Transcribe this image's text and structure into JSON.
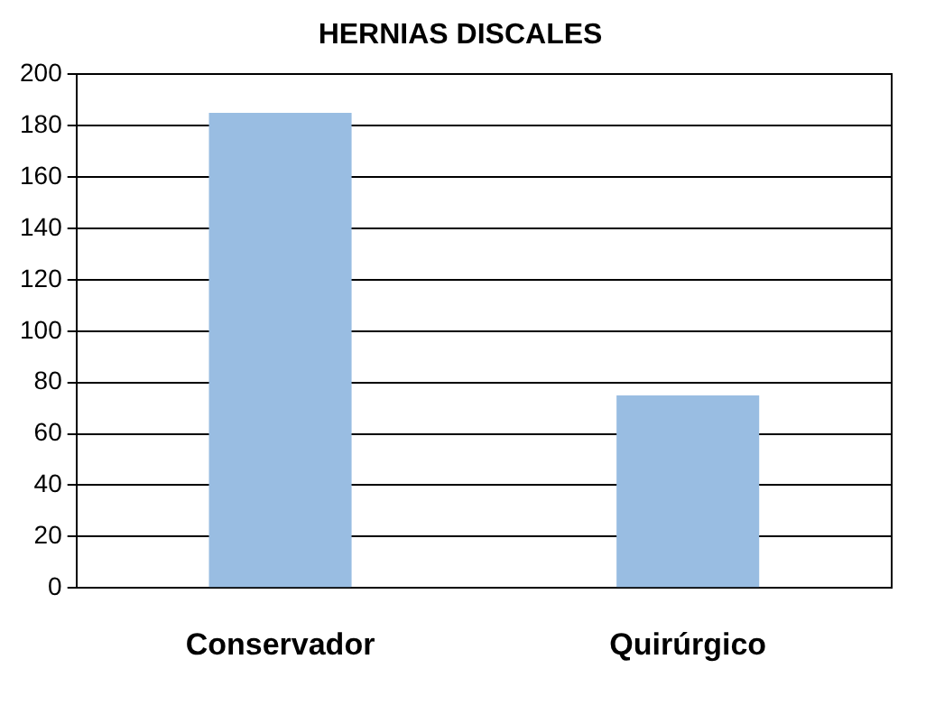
{
  "chart_data": {
    "type": "bar",
    "title": "HERNIAS DISCALES",
    "categories": [
      "Conservador",
      "Quirúrgico"
    ],
    "values": [
      185,
      75
    ],
    "color": "#99bde2",
    "ylim": [
      0,
      200
    ],
    "yticks": [
      0,
      20,
      40,
      60,
      80,
      100,
      120,
      140,
      160,
      180,
      200
    ],
    "grid": "y"
  }
}
